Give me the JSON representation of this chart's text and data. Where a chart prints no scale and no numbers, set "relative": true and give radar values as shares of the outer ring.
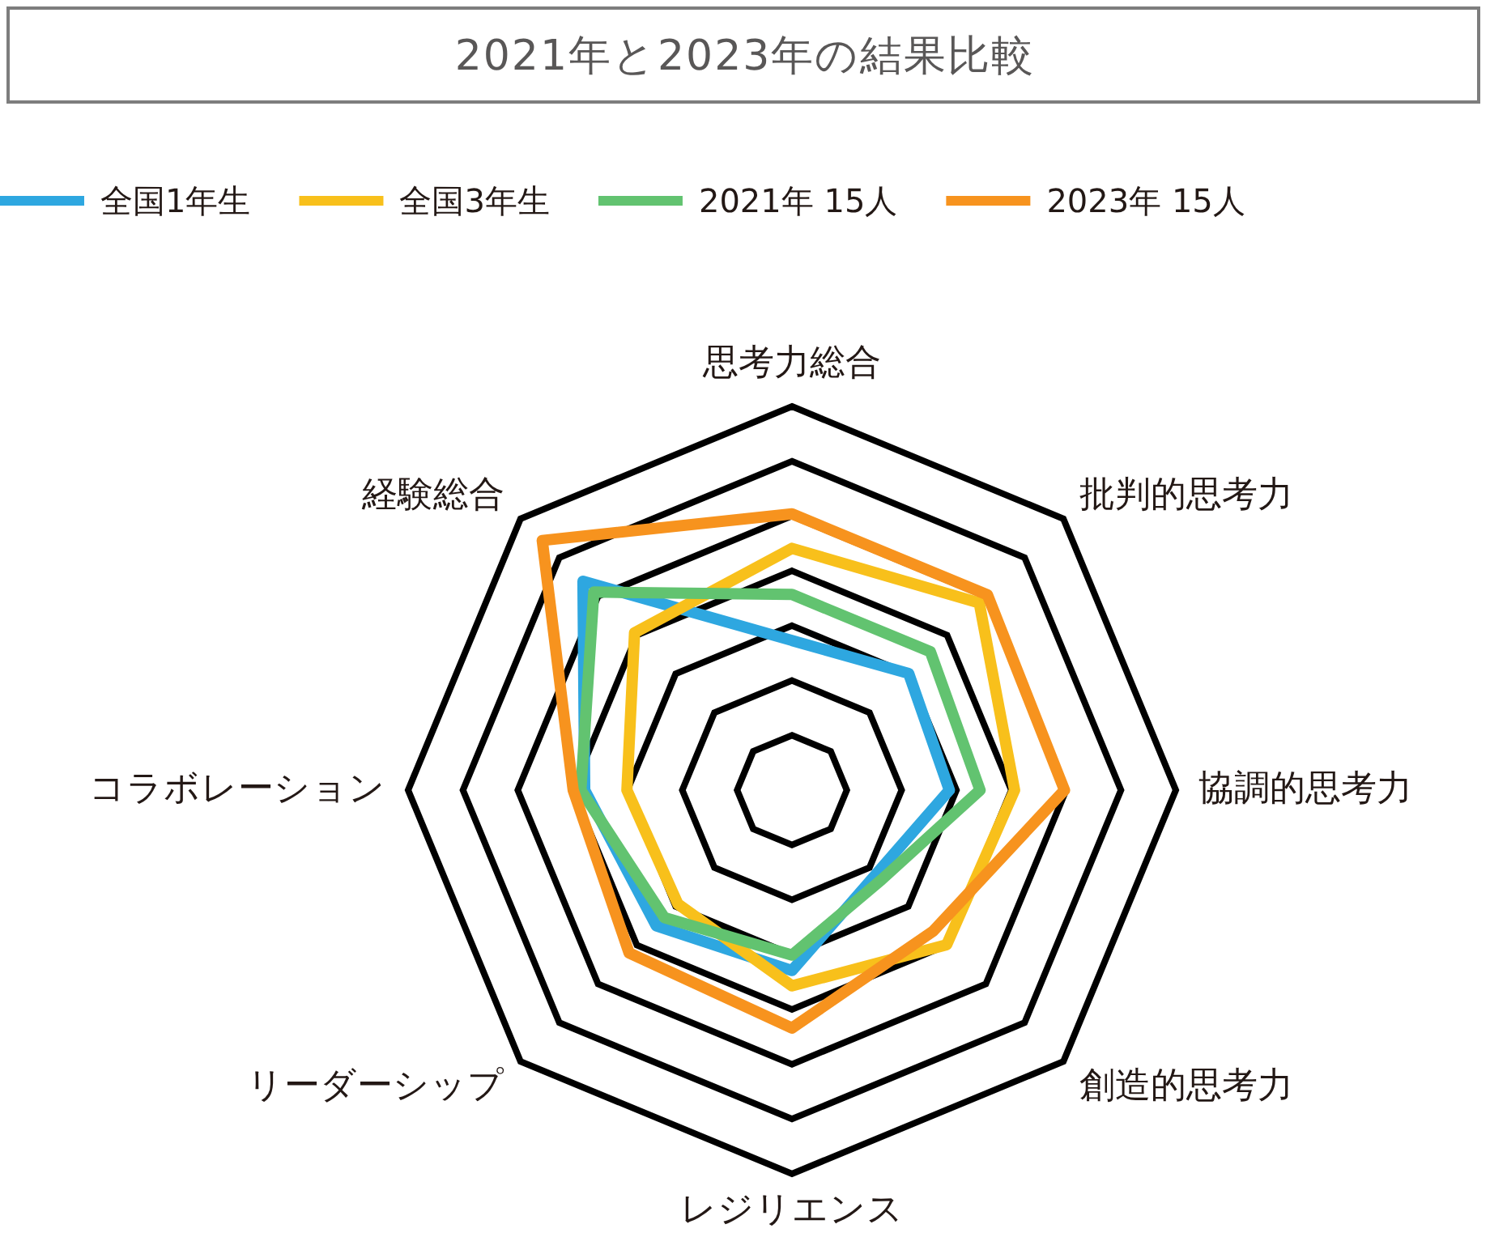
{
  "chart_data": {
    "type": "radar",
    "title": "2021年と2023年の結果比較",
    "relative": true,
    "grid": true,
    "legend": "top left",
    "marker": "none",
    "categories": [
      "思考力総合",
      "批判的思考力",
      "協調的思考力",
      "創造的思考力",
      "レジリエンス",
      "リーダーシップ",
      "コラボレーション",
      "経験総合"
    ],
    "series": [
      {
        "name": "全国1年生",
        "color": "#2ea7e0",
        "values": [
          0.39,
          0.43,
          0.41,
          0.31,
          0.47,
          0.5,
          0.54,
          0.77
        ]
      },
      {
        "name": "全国3年生",
        "color": "#f8c01b",
        "values": [
          0.63,
          0.69,
          0.58,
          0.57,
          0.51,
          0.42,
          0.43,
          0.58
        ]
      },
      {
        "name": "2021年 15人",
        "color": "#62c370",
        "values": [
          0.51,
          0.51,
          0.49,
          0.33,
          0.43,
          0.47,
          0.55,
          0.73
        ]
      },
      {
        "name": "2023年 15人",
        "color": "#f7931e",
        "values": [
          0.72,
          0.72,
          0.71,
          0.52,
          0.62,
          0.6,
          0.57,
          0.92
        ]
      }
    ]
  }
}
